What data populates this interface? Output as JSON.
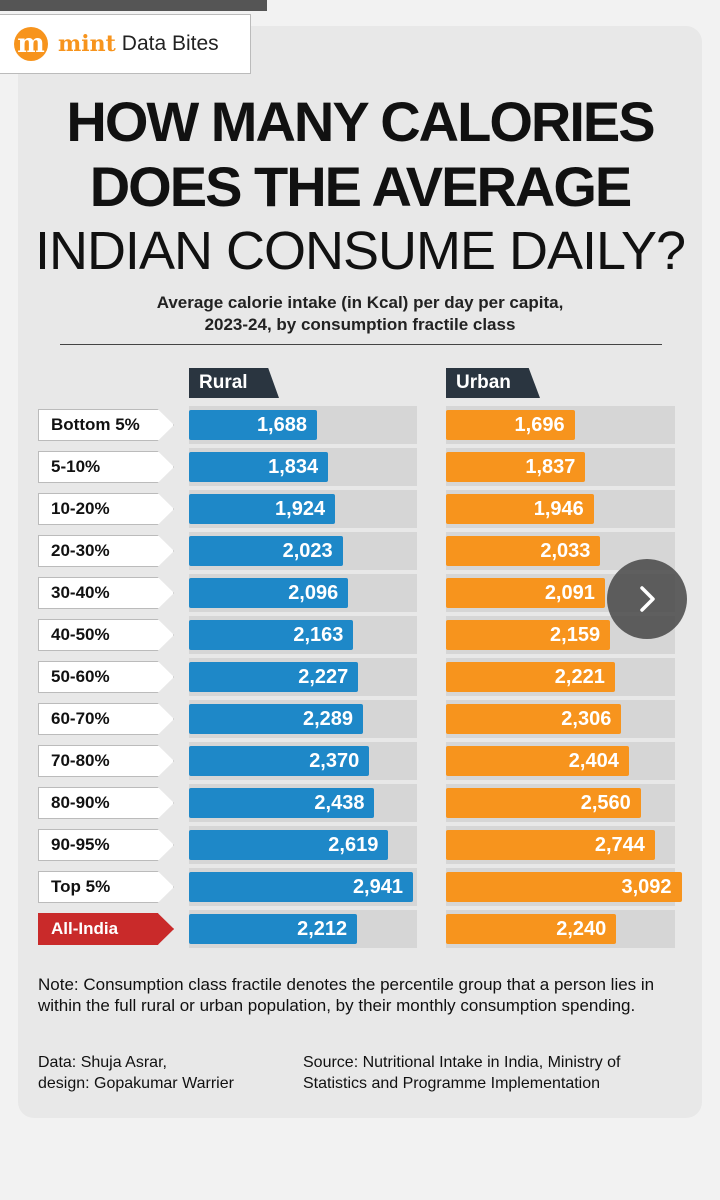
{
  "brand": {
    "logo_letter": "m",
    "name": "mint",
    "section": "Data Bites"
  },
  "title": {
    "line1": "HOW MANY CALORIES",
    "line2": "DOES THE AVERAGE",
    "line3": "INDIAN CONSUME DAILY?"
  },
  "subtitle": {
    "line1": "Average calorie intake (in Kcal) per day per capita,",
    "line2": "2023-24, by consumption fractile class"
  },
  "chart_data": {
    "type": "bar",
    "orientation": "horizontal",
    "categories": [
      "Bottom 5%",
      "5-10%",
      "10-20%",
      "20-30%",
      "30-40%",
      "40-50%",
      "50-60%",
      "60-70%",
      "70-80%",
      "80-90%",
      "90-95%",
      "Top 5%",
      "All-India"
    ],
    "series": [
      {
        "name": "Rural",
        "color": "#1e88c8",
        "values": [
          1688,
          1834,
          1924,
          2023,
          2096,
          2163,
          2227,
          2289,
          2370,
          2438,
          2619,
          2941,
          2212
        ]
      },
      {
        "name": "Urban",
        "color": "#f7941d",
        "values": [
          1696,
          1837,
          1946,
          2033,
          2091,
          2159,
          2221,
          2306,
          2404,
          2560,
          2744,
          3092,
          2240
        ]
      }
    ],
    "value_labels": {
      "Rural": [
        "1,688",
        "1,834",
        "1,924",
        "2,023",
        "2,096",
        "2,163",
        "2,227",
        "2,289",
        "2,370",
        "2,438",
        "2,619",
        "2,941",
        "2,212"
      ],
      "Urban": [
        "1,696",
        "1,837",
        "1,946",
        "2,033",
        "2,091",
        "2,159",
        "2,221",
        "2,306",
        "2,404",
        "2,560",
        "2,744",
        "3,092",
        "2,240"
      ]
    },
    "highlight_category": "All-India",
    "highlight_color": "#c92a2a"
  },
  "note": "Note: Consumption class fractile denotes the percentile group that a person lies in within the full rural or urban population, by their monthly consumption spending.",
  "credits": {
    "data_line1": "Data: Shuja Asrar,",
    "data_line2": "design: Gopakumar Warrier",
    "source_line1": "Source: Nutritional Intake in India, Ministry of",
    "source_line2": "Statistics and Programme Implementation"
  },
  "next_icon": "chevron-right-icon"
}
